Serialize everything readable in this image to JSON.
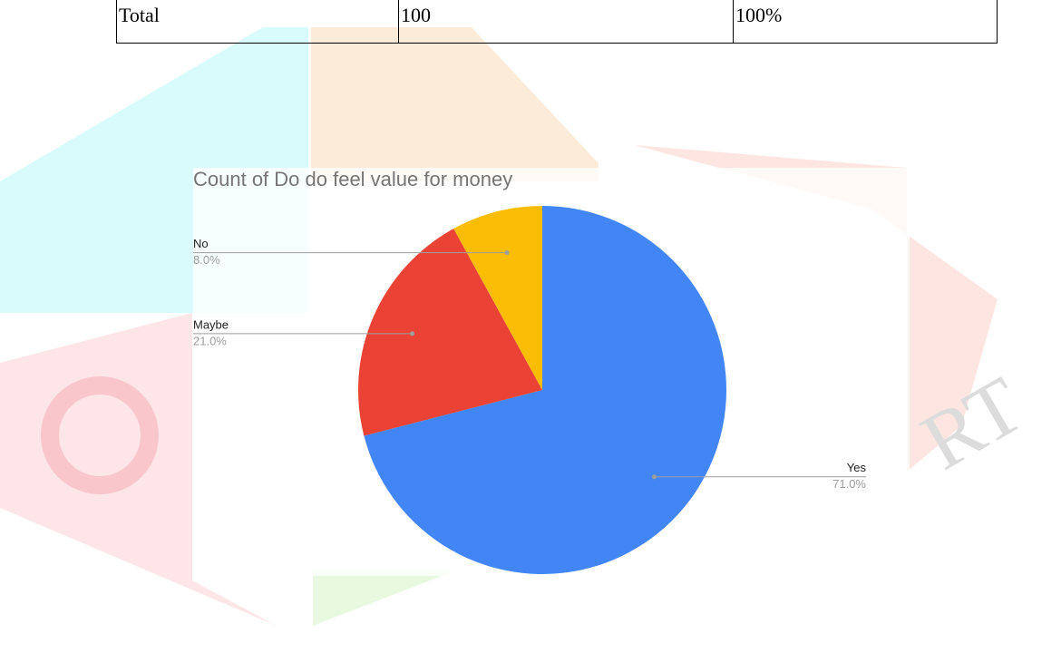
{
  "table": {
    "rows": [
      [
        "Total",
        "100",
        "100%"
      ]
    ]
  },
  "chart_data": {
    "type": "pie",
    "title": "Count of Do do feel value for money",
    "categories": [
      "Yes",
      "Maybe",
      "No"
    ],
    "values": [
      71,
      21,
      8
    ],
    "value_labels": [
      "71.0%",
      "21.0%",
      "8.0%"
    ],
    "colors": [
      "#4285f4",
      "#ea4335",
      "#fbbc04"
    ]
  }
}
